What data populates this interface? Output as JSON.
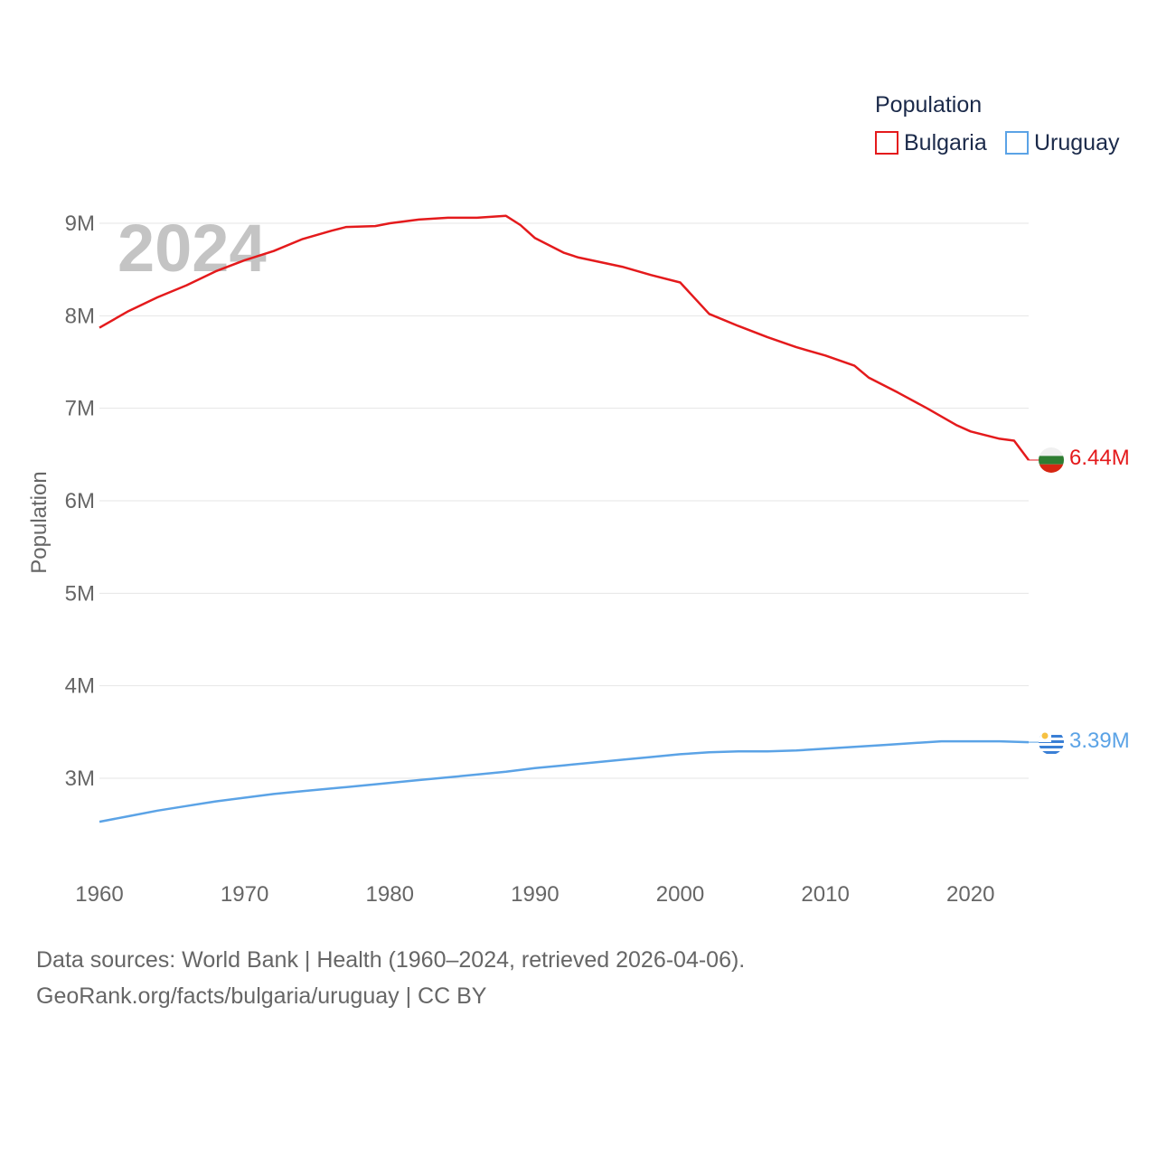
{
  "chart_data": {
    "type": "line",
    "year_label": "2024",
    "legend_title": "Population",
    "ylabel": "Population",
    "xlim": [
      1960,
      2024
    ],
    "ylim": [
      2500000,
      9300000
    ],
    "y_ticks": [
      {
        "value": 9000000,
        "label": "9M"
      },
      {
        "value": 8000000,
        "label": "8M"
      },
      {
        "value": 7000000,
        "label": "7M"
      },
      {
        "value": 6000000,
        "label": "6M"
      },
      {
        "value": 5000000,
        "label": "5M"
      },
      {
        "value": 4000000,
        "label": "4M"
      },
      {
        "value": 3000000,
        "label": "3M"
      }
    ],
    "x_ticks": [
      {
        "value": 1960,
        "label": "1960"
      },
      {
        "value": 1970,
        "label": "1970"
      },
      {
        "value": 1980,
        "label": "1980"
      },
      {
        "value": 1990,
        "label": "1990"
      },
      {
        "value": 2000,
        "label": "2000"
      },
      {
        "value": 2010,
        "label": "2010"
      },
      {
        "value": 2020,
        "label": "2020"
      }
    ],
    "series": [
      {
        "name": "Bulgaria",
        "color": "#e41a1c",
        "end_label": "6.44M",
        "x": [
          1960,
          1962,
          1964,
          1966,
          1968,
          1970,
          1972,
          1974,
          1976,
          1977,
          1979,
          1980,
          1982,
          1984,
          1986,
          1988,
          1989,
          1990,
          1992,
          1993,
          1996,
          1998,
          2000,
          2002,
          2004,
          2006,
          2008,
          2010,
          2012,
          2013,
          2015,
          2017,
          2019,
          2020,
          2022,
          2023,
          2024
        ],
        "values": [
          7870000,
          8050000,
          8200000,
          8330000,
          8480000,
          8600000,
          8700000,
          8830000,
          8920000,
          8960000,
          8970000,
          9000000,
          9040000,
          9060000,
          9060000,
          9080000,
          8980000,
          8840000,
          8680000,
          8630000,
          8530000,
          8440000,
          8360000,
          8020000,
          7890000,
          7770000,
          7660000,
          7570000,
          7460000,
          7330000,
          7170000,
          7000000,
          6820000,
          6750000,
          6670000,
          6650000,
          6440000
        ]
      },
      {
        "name": "Uruguay",
        "color": "#5ba3e6",
        "end_label": "3.39M",
        "x": [
          1960,
          1962,
          1964,
          1966,
          1968,
          1970,
          1972,
          1974,
          1976,
          1978,
          1980,
          1982,
          1984,
          1986,
          1988,
          1990,
          1992,
          1994,
          1996,
          1998,
          2000,
          2002,
          2004,
          2006,
          2008,
          2010,
          2012,
          2014,
          2016,
          2018,
          2020,
          2022,
          2024
        ],
        "values": [
          2530000,
          2590000,
          2650000,
          2700000,
          2750000,
          2790000,
          2830000,
          2860000,
          2890000,
          2920000,
          2950000,
          2980000,
          3010000,
          3040000,
          3070000,
          3110000,
          3140000,
          3170000,
          3200000,
          3230000,
          3260000,
          3280000,
          3290000,
          3290000,
          3300000,
          3320000,
          3340000,
          3360000,
          3380000,
          3400000,
          3400000,
          3400000,
          3390000
        ]
      }
    ]
  },
  "footer": {
    "line1": "Data sources: World Bank | Health (1960–2024, retrieved 2026-04-06).",
    "line2": "GeoRank.org/facts/bulgaria/uruguay | CC BY"
  }
}
